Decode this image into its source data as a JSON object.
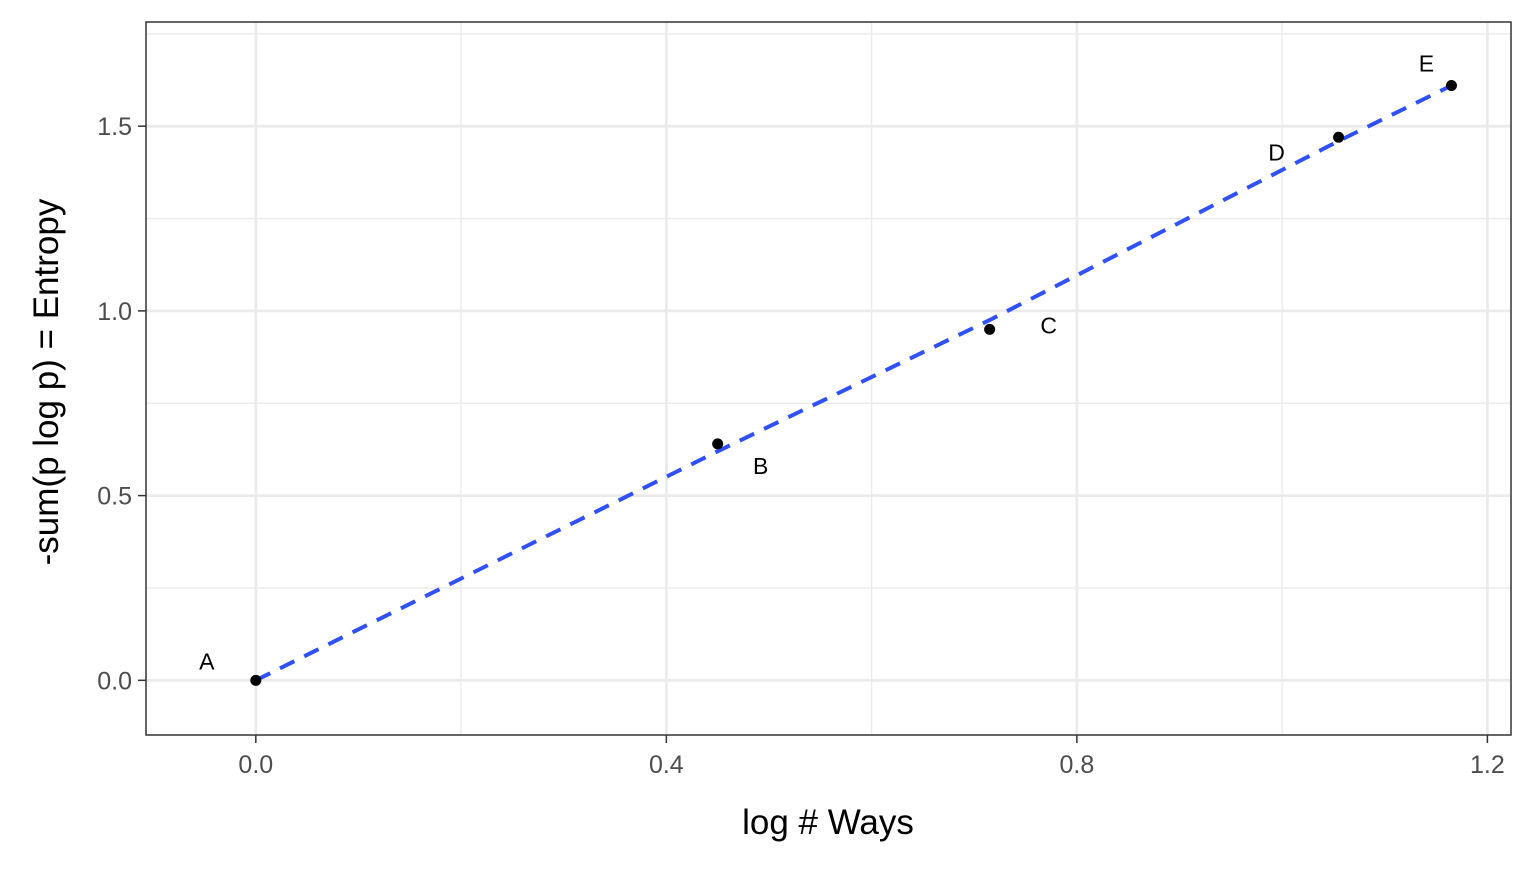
{
  "chart_data": {
    "type": "scatter",
    "title": "",
    "xlabel": "log # Ways",
    "ylabel": "-sum(p log p) = Entropy",
    "xlim": [
      -0.107,
      1.223
    ],
    "ylim": [
      -0.148,
      1.782
    ],
    "x_ticks": [
      0.0,
      0.4,
      0.8,
      1.2
    ],
    "x_tick_labels": [
      "0.0",
      "0.4",
      "0.8",
      "1.2"
    ],
    "x_minor_ticks": [
      0.2,
      0.6,
      1.0
    ],
    "y_ticks": [
      0.0,
      0.5,
      1.0,
      1.5
    ],
    "y_tick_labels": [
      "0.0",
      "0.5",
      "1.0",
      "1.5"
    ],
    "y_minor_ticks": [
      0.25,
      0.75,
      1.25,
      1.75
    ],
    "grid": true,
    "points": [
      {
        "label": "A",
        "x": 0.0,
        "y": 0.0
      },
      {
        "label": "B",
        "x": 0.45,
        "y": 0.64
      },
      {
        "label": "C",
        "x": 0.715,
        "y": 0.95
      },
      {
        "label": "D",
        "x": 1.055,
        "y": 1.47
      },
      {
        "label": "E",
        "x": 1.165,
        "y": 1.61
      }
    ],
    "trend_line": {
      "style": "dashed",
      "color": "#3050f8",
      "x": [
        0.0,
        0.45,
        0.715,
        1.055,
        1.165
      ],
      "y": [
        0.0,
        0.62,
        0.975,
        1.46,
        1.61
      ]
    },
    "point_color": "#000000",
    "panel_border_color": "#333333",
    "grid_color": "#ebebeb"
  }
}
